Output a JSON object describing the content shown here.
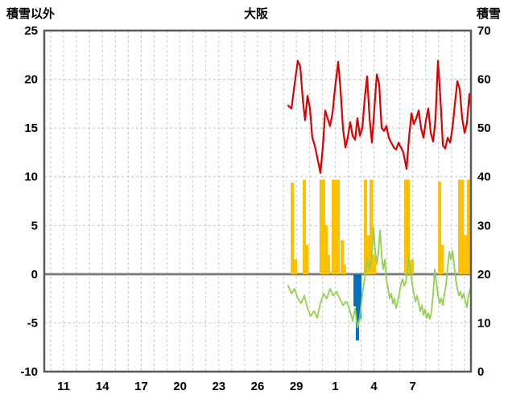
{
  "chart_data": {
    "type": "line",
    "title": "大阪",
    "left_axis": {
      "title": "積雪以外",
      "min": -10,
      "max": 25,
      "ticks": [
        25,
        20,
        15,
        10,
        5,
        0,
        -5,
        -10
      ]
    },
    "right_axis": {
      "title": "積雪",
      "min": 0,
      "max": 70,
      "ticks": [
        70,
        60,
        50,
        40,
        30,
        20,
        10,
        0
      ]
    },
    "x_axis": {
      "min": 9.5,
      "max": 42.5,
      "grid_step": 1,
      "tick_positions": [
        11,
        14,
        17,
        20,
        23,
        26,
        29,
        32,
        35,
        38
      ],
      "tick_labels": [
        "11",
        "14",
        "17",
        "20",
        "23",
        "26",
        "29",
        "1",
        "4",
        "7"
      ]
    },
    "grid": {
      "show": true,
      "color": "#c6c6c6",
      "zero_line_color": "#7f7f7f",
      "frame_color": "#595959"
    },
    "series": [
      {
        "name": "yellow-bars",
        "type": "bar",
        "axis": "left",
        "color": "#ffc000",
        "points": [
          [
            28.68,
            9.4
          ],
          [
            28.93,
            1.5
          ],
          [
            29.61,
            9.7
          ],
          [
            29.8,
            3.0
          ],
          [
            30.92,
            9.7
          ],
          [
            31.1,
            9.7
          ],
          [
            31.29,
            5.0
          ],
          [
            31.48,
            2.0
          ],
          [
            31.85,
            9.7
          ],
          [
            32.04,
            9.7
          ],
          [
            32.23,
            9.7
          ],
          [
            32.54,
            3.5
          ],
          [
            32.72,
            1.0
          ],
          [
            34.34,
            9.7
          ],
          [
            34.53,
            4.0
          ],
          [
            34.78,
            9.7
          ],
          [
            35.03,
            2.0
          ],
          [
            37.46,
            9.7
          ],
          [
            37.65,
            9.7
          ],
          [
            37.96,
            1.5
          ],
          [
            40.08,
            9.5
          ],
          [
            40.26,
            3.0
          ],
          [
            41.63,
            9.7
          ],
          [
            41.82,
            9.7
          ],
          [
            42.07,
            4.0
          ],
          [
            42.31,
            9.7
          ],
          [
            42.5,
            9.7
          ]
        ]
      },
      {
        "name": "blue-bars",
        "type": "bar",
        "axis": "left",
        "color": "#0070c0",
        "points": [
          [
            33.54,
            -3.3
          ],
          [
            33.72,
            -6.8
          ],
          [
            33.91,
            -4.6
          ]
        ]
      },
      {
        "name": "green-line",
        "type": "line",
        "axis": "left",
        "color": "#92d050",
        "points": [
          [
            28.37,
            -1.2
          ],
          [
            28.62,
            -2.0
          ],
          [
            28.86,
            -1.5
          ],
          [
            29.11,
            -2.5
          ],
          [
            29.36,
            -3.0
          ],
          [
            29.61,
            -2.2
          ],
          [
            29.86,
            -3.5
          ],
          [
            30.11,
            -4.3
          ],
          [
            30.36,
            -3.8
          ],
          [
            30.61,
            -4.5
          ],
          [
            30.86,
            -3.0
          ],
          [
            31.1,
            -2.0
          ],
          [
            31.35,
            -2.5
          ],
          [
            31.6,
            -1.5
          ],
          [
            31.85,
            -2.2
          ],
          [
            32.1,
            -1.8
          ],
          [
            32.35,
            -2.5
          ],
          [
            32.6,
            -3.2
          ],
          [
            32.85,
            -2.8
          ],
          [
            33.1,
            -3.5
          ],
          [
            33.35,
            -4.8
          ],
          [
            33.54,
            -3.5
          ],
          [
            33.72,
            -5.5
          ],
          [
            33.91,
            -4.5
          ],
          [
            34.1,
            -2.0
          ],
          [
            34.28,
            -0.5
          ],
          [
            34.47,
            1.5
          ],
          [
            34.66,
            0.5
          ],
          [
            34.84,
            2.0
          ],
          [
            34.97,
            4.8
          ],
          [
            35.09,
            2.5
          ],
          [
            35.22,
            1.0
          ],
          [
            35.34,
            2.2
          ],
          [
            35.47,
            4.5
          ],
          [
            35.59,
            2.0
          ],
          [
            35.71,
            0.5
          ],
          [
            35.84,
            1.5
          ],
          [
            35.96,
            -0.5
          ],
          [
            36.09,
            -1.5
          ],
          [
            36.21,
            -2.5
          ],
          [
            36.34,
            -2.0
          ],
          [
            36.46,
            -3.0
          ],
          [
            36.59,
            -2.5
          ],
          [
            36.71,
            -3.5
          ],
          [
            36.84,
            -2.8
          ],
          [
            36.96,
            -2.0
          ],
          [
            37.09,
            -1.0
          ],
          [
            37.21,
            -0.5
          ],
          [
            37.34,
            -1.2
          ],
          [
            37.46,
            -0.8
          ],
          [
            37.59,
            0.5
          ],
          [
            37.71,
            1.8
          ],
          [
            37.83,
            0.3
          ],
          [
            37.96,
            -1.0
          ],
          [
            38.08,
            -2.0
          ],
          [
            38.21,
            -2.8
          ],
          [
            38.33,
            -2.2
          ],
          [
            38.46,
            -3.0
          ],
          [
            38.58,
            -3.8
          ],
          [
            38.71,
            -3.2
          ],
          [
            38.83,
            -4.2
          ],
          [
            38.96,
            -3.6
          ],
          [
            39.08,
            -4.5
          ],
          [
            39.2,
            -4.0
          ],
          [
            39.33,
            -4.6
          ],
          [
            39.45,
            -3.8
          ],
          [
            39.58,
            -2.0
          ],
          [
            39.7,
            0.5
          ],
          [
            39.83,
            -0.8
          ],
          [
            39.95,
            -2.2
          ],
          [
            40.08,
            -3.0
          ],
          [
            40.2,
            -2.5
          ],
          [
            40.33,
            -3.2
          ],
          [
            40.45,
            -2.0
          ],
          [
            40.58,
            -1.0
          ],
          [
            40.7,
            0.8
          ],
          [
            40.83,
            2.3
          ],
          [
            40.95,
            1.5
          ],
          [
            41.07,
            2.4
          ],
          [
            41.2,
            1.0
          ],
          [
            41.32,
            -0.5
          ],
          [
            41.45,
            -1.5
          ],
          [
            41.57,
            -2.2
          ],
          [
            41.7,
            -1.8
          ],
          [
            41.82,
            -2.5
          ],
          [
            41.94,
            -2.0
          ],
          [
            42.07,
            -2.8
          ],
          [
            42.19,
            -3.4
          ],
          [
            42.31,
            -2.2
          ],
          [
            42.44,
            -1.5
          ],
          [
            42.5,
            -1.2
          ]
        ]
      },
      {
        "name": "red-line",
        "type": "line",
        "axis": "left",
        "color": "#dc0000",
        "points": [
          [
            28.37,
            17.3
          ],
          [
            28.62,
            17.0
          ],
          [
            28.86,
            19.5
          ],
          [
            29.11,
            21.9
          ],
          [
            29.3,
            21.3
          ],
          [
            29.49,
            18.0
          ],
          [
            29.67,
            15.8
          ],
          [
            29.86,
            18.3
          ],
          [
            30.05,
            17.0
          ],
          [
            30.23,
            14.0
          ],
          [
            30.42,
            13.2
          ],
          [
            30.61,
            12.0
          ],
          [
            30.86,
            10.4
          ],
          [
            31.04,
            13.0
          ],
          [
            31.23,
            16.8
          ],
          [
            31.42,
            16.0
          ],
          [
            31.6,
            15.2
          ],
          [
            31.79,
            16.5
          ],
          [
            31.98,
            19.0
          ],
          [
            32.23,
            21.8
          ],
          [
            32.41,
            19.0
          ],
          [
            32.6,
            15.0
          ],
          [
            32.79,
            13.0
          ],
          [
            32.97,
            14.0
          ],
          [
            33.16,
            15.6
          ],
          [
            33.35,
            14.2
          ],
          [
            33.54,
            13.8
          ],
          [
            33.72,
            16.0
          ],
          [
            33.91,
            14.2
          ],
          [
            34.1,
            15.0
          ],
          [
            34.28,
            18.0
          ],
          [
            34.47,
            20.3
          ],
          [
            34.66,
            16.0
          ],
          [
            34.84,
            13.5
          ],
          [
            35.03,
            17.0
          ],
          [
            35.22,
            20.5
          ],
          [
            35.4,
            19.5
          ],
          [
            35.59,
            15.0
          ],
          [
            35.78,
            14.7
          ],
          [
            35.96,
            15.2
          ],
          [
            36.15,
            14.0
          ],
          [
            36.34,
            13.5
          ],
          [
            36.53,
            13.0
          ],
          [
            36.71,
            12.8
          ],
          [
            36.9,
            13.5
          ],
          [
            37.09,
            13.0
          ],
          [
            37.27,
            12.5
          ],
          [
            37.52,
            10.8
          ],
          [
            37.71,
            14.0
          ],
          [
            37.9,
            16.5
          ],
          [
            38.08,
            15.4
          ],
          [
            38.27,
            16.0
          ],
          [
            38.46,
            16.8
          ],
          [
            38.64,
            15.0
          ],
          [
            38.83,
            14.0
          ],
          [
            39.02,
            15.8
          ],
          [
            39.2,
            17.0
          ],
          [
            39.39,
            14.5
          ],
          [
            39.58,
            13.6
          ],
          [
            39.76,
            16.0
          ],
          [
            39.95,
            21.9
          ],
          [
            40.14,
            18.0
          ],
          [
            40.33,
            13.2
          ],
          [
            40.51,
            12.9
          ],
          [
            40.7,
            14.0
          ],
          [
            40.89,
            13.5
          ],
          [
            41.07,
            15.0
          ],
          [
            41.26,
            17.5
          ],
          [
            41.45,
            19.8
          ],
          [
            41.63,
            19.0
          ],
          [
            41.82,
            16.0
          ],
          [
            42.01,
            14.5
          ],
          [
            42.19,
            15.5
          ],
          [
            42.38,
            18.5
          ],
          [
            42.5,
            17.0
          ]
        ]
      }
    ]
  }
}
